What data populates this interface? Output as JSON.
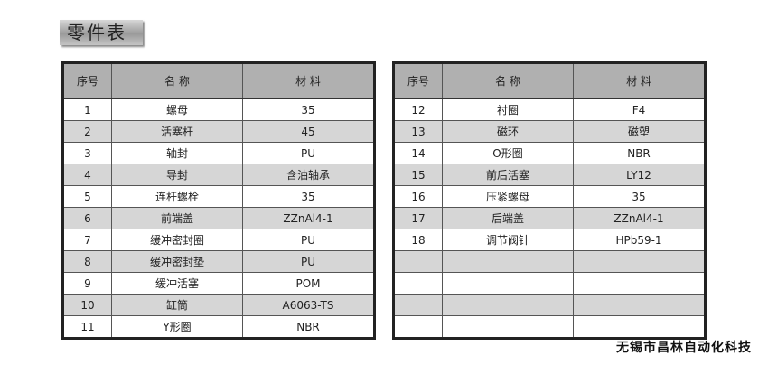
{
  "title": "零件表",
  "headers": {
    "no": "序号",
    "name": "名 称",
    "material": "材 料"
  },
  "left_rows": [
    {
      "no": "1",
      "name": "螺母",
      "material": "35"
    },
    {
      "no": "2",
      "name": "活塞杆",
      "material": "45"
    },
    {
      "no": "3",
      "name": "轴封",
      "material": "PU"
    },
    {
      "no": "4",
      "name": "导封",
      "material": "含油轴承"
    },
    {
      "no": "5",
      "name": "连杆螺栓",
      "material": "35"
    },
    {
      "no": "6",
      "name": "前端盖",
      "material": "ZZnAl4-1"
    },
    {
      "no": "7",
      "name": "缓冲密封圈",
      "material": "PU"
    },
    {
      "no": "8",
      "name": "缓冲密封垫",
      "material": "PU"
    },
    {
      "no": "9",
      "name": "缓冲活塞",
      "material": "POM"
    },
    {
      "no": "10",
      "name": "缸筒",
      "material": "A6063-TS"
    },
    {
      "no": "11",
      "name": "Y形圈",
      "material": "NBR"
    }
  ],
  "right_rows": [
    {
      "no": "12",
      "name": "衬圈",
      "material": "F4"
    },
    {
      "no": "13",
      "name": "磁环",
      "material": "磁塑"
    },
    {
      "no": "14",
      "name": "O形圈",
      "material": "NBR"
    },
    {
      "no": "15",
      "name": "前后活塞",
      "material": "LY12"
    },
    {
      "no": "16",
      "name": "压紧螺母",
      "material": "35"
    },
    {
      "no": "17",
      "name": "后端盖",
      "material": "ZZnAl4-1"
    },
    {
      "no": "18",
      "name": "调节阀针",
      "material": "HPb59-1"
    },
    {
      "no": "",
      "name": "",
      "material": ""
    },
    {
      "no": "",
      "name": "",
      "material": ""
    },
    {
      "no": "",
      "name": "",
      "material": ""
    },
    {
      "no": "",
      "name": "",
      "material": ""
    }
  ],
  "footer": "无锡市昌林自动化科技"
}
